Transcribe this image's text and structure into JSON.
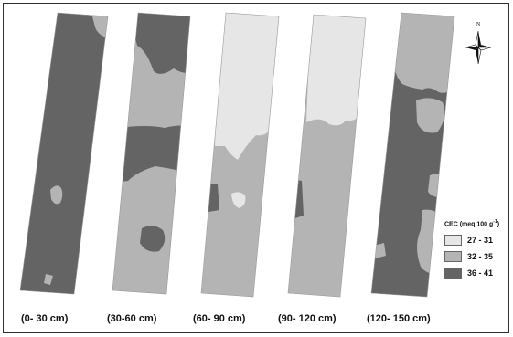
{
  "figure": {
    "north_label": "N",
    "legend": {
      "title": "CEC (meq 100 g",
      "title_sup": "-1",
      "title_close": ")",
      "classes": [
        {
          "label": "27 - 31",
          "color": "#e6e6e6"
        },
        {
          "label": "32 - 35",
          "color": "#b4b4b4"
        },
        {
          "label": "36 - 41",
          "color": "#646464"
        }
      ]
    },
    "panels": [
      {
        "label": "(0- 30 cm)"
      },
      {
        "label": "(30-60 cm)"
      },
      {
        "label": "(60- 90 cm)"
      },
      {
        "label": "(90- 120 cm)"
      },
      {
        "label": "(120- 150 cm)"
      }
    ]
  }
}
